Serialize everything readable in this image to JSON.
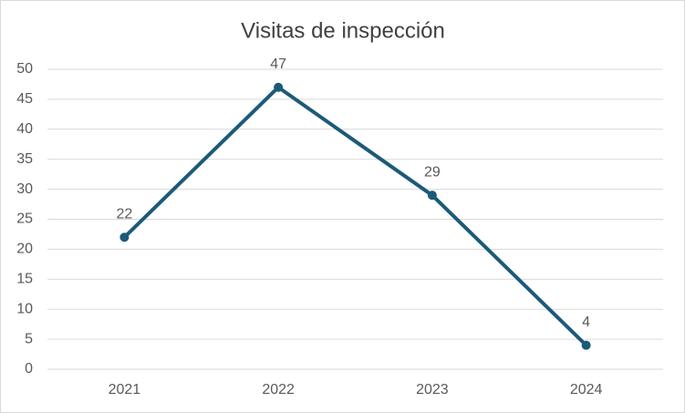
{
  "chart_data": {
    "type": "line",
    "title": "Visitas de inspección",
    "categories": [
      "2021",
      "2022",
      "2023",
      "2024"
    ],
    "values": [
      22,
      47,
      29,
      4
    ],
    "color": "#1c5a78",
    "ylim": [
      0,
      50
    ],
    "yticks": [
      0,
      5,
      10,
      15,
      20,
      25,
      30,
      35,
      40,
      45,
      50
    ],
    "grid": true
  }
}
